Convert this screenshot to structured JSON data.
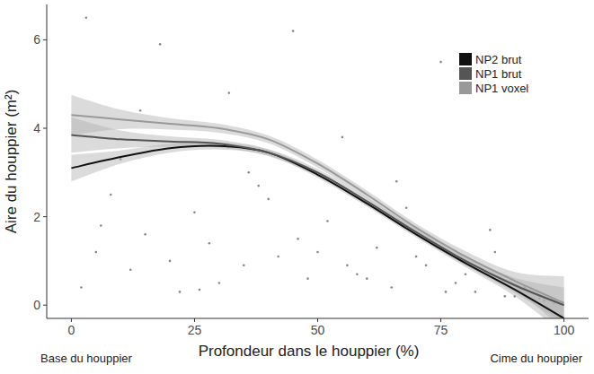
{
  "chart_data": {
    "type": "line",
    "x_label": "Profondeur dans le houppier (%)",
    "y_label": "Aire du houppier (m²)",
    "annotations": [
      "Base du houppier",
      "Cime du houppier"
    ],
    "x": [
      0,
      10,
      20,
      30,
      40,
      50,
      60,
      70,
      80,
      90,
      100
    ],
    "xlim": [
      -5,
      105
    ],
    "ylim": [
      -0.3,
      6.8
    ],
    "xticks": [
      0,
      25,
      50,
      75,
      100
    ],
    "yticks": [
      0,
      2,
      4,
      6
    ],
    "grid": false,
    "legend": "top-right",
    "series": [
      {
        "name": "NP2 brut",
        "color": "#111111",
        "values": [
          3.1,
          3.35,
          3.55,
          3.6,
          3.45,
          2.95,
          2.3,
          1.6,
          0.95,
          0.35,
          -0.3
        ],
        "lower": [
          2.8,
          3.2,
          3.45,
          3.52,
          3.38,
          2.88,
          2.23,
          1.53,
          0.86,
          0.2,
          -0.65
        ],
        "upper": [
          3.4,
          3.5,
          3.65,
          3.68,
          3.52,
          3.02,
          2.37,
          1.67,
          1.04,
          0.5,
          0.05
        ]
      },
      {
        "name": "NP1 brut",
        "color": "#555555",
        "values": [
          3.85,
          3.75,
          3.7,
          3.65,
          3.45,
          3.0,
          2.35,
          1.65,
          1.0,
          0.45,
          0.0
        ],
        "lower": [
          3.45,
          3.55,
          3.58,
          3.56,
          3.37,
          2.92,
          2.27,
          1.57,
          0.9,
          0.28,
          -0.4
        ],
        "upper": [
          4.25,
          3.95,
          3.82,
          3.74,
          3.53,
          3.08,
          2.43,
          1.73,
          1.1,
          0.62,
          0.4
        ]
      },
      {
        "name": "NP1 voxel",
        "color": "#999999",
        "values": [
          4.3,
          4.2,
          4.1,
          4.0,
          3.75,
          3.2,
          2.5,
          1.75,
          1.1,
          0.55,
          0.05
        ],
        "lower": [
          3.85,
          3.98,
          3.97,
          3.9,
          3.66,
          3.11,
          2.41,
          1.66,
          0.98,
          0.35,
          -0.55
        ],
        "upper": [
          4.75,
          4.42,
          4.23,
          4.1,
          3.84,
          3.29,
          2.59,
          1.84,
          1.22,
          0.75,
          0.65
        ]
      },
      {
        "type": "scatter",
        "color": "#888888",
        "marker": "point",
        "x": [
          2,
          5,
          8,
          12,
          15,
          18,
          22,
          25,
          28,
          32,
          35,
          38,
          42,
          45,
          48,
          52,
          55,
          58,
          62,
          65,
          68,
          72,
          75,
          78,
          82,
          85,
          88,
          92,
          95,
          98,
          3,
          10,
          20,
          30,
          40,
          50,
          60,
          70,
          80,
          90,
          6,
          14,
          26,
          36,
          46,
          56,
          66,
          76,
          86,
          96
        ],
        "values": [
          0.4,
          1.2,
          2.5,
          0.8,
          1.6,
          5.9,
          0.3,
          2.1,
          1.4,
          4.8,
          0.9,
          2.7,
          1.1,
          6.2,
          0.6,
          1.9,
          3.8,
          0.7,
          1.3,
          0.4,
          2.2,
          0.9,
          5.5,
          0.5,
          0.3,
          1.7,
          0.2,
          0.4,
          0.15,
          0.05,
          6.5,
          3.3,
          1.0,
          0.5,
          2.4,
          1.2,
          0.6,
          1.1,
          0.7,
          0.2,
          1.8,
          4.4,
          0.35,
          3.0,
          1.5,
          0.9,
          2.8,
          0.3,
          1.2,
          0.1
        ]
      }
    ]
  }
}
